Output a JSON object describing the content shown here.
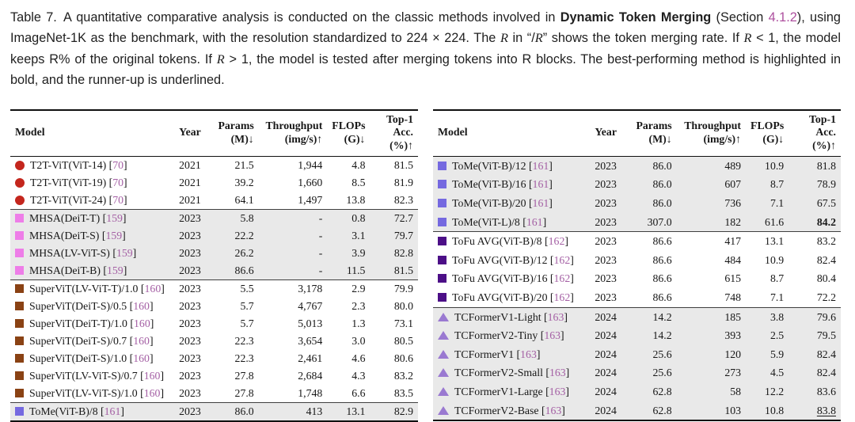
{
  "caption": {
    "segments": [
      {
        "type": "plain",
        "text": "Table 7. A quantitative comparative analysis is conducted on the classic methods involved in "
      },
      {
        "type": "bold",
        "text": "Dynamic Token Merging"
      },
      {
        "type": "plain",
        "text": " (Section "
      },
      {
        "type": "link",
        "text": "4.1.2"
      },
      {
        "type": "plain",
        "text": "), using ImageNet-1K as the benchmark, with the resolution standardized to 224 × 224. The "
      },
      {
        "type": "math",
        "text": "R"
      },
      {
        "type": "plain",
        "text": " in “/"
      },
      {
        "type": "math",
        "text": "R"
      },
      {
        "type": "plain",
        "text": "” shows the token merging rate. If "
      },
      {
        "type": "math",
        "text": "R"
      },
      {
        "type": "plain",
        "text": " < 1, the model keeps R% of the original tokens. If "
      },
      {
        "type": "math",
        "text": "R"
      },
      {
        "type": "plain",
        "text": " > 1, the model is tested after merging tokens into R blocks. The best-performing method is highlighted in bold, and the runner-up is underlined."
      }
    ]
  },
  "columns": [
    {
      "key": "model",
      "label1": "Model",
      "label2": "",
      "align": "left"
    },
    {
      "key": "year",
      "label1": "Year",
      "label2": "",
      "align": "center"
    },
    {
      "key": "params",
      "label1": "Params",
      "label2": "(M)↓",
      "align": "right"
    },
    {
      "key": "throughput",
      "label1": "Throughput",
      "label2": "(img/s)↑",
      "align": "right"
    },
    {
      "key": "flops",
      "label1": "FLOPs",
      "label2": "(G)↓",
      "align": "right"
    },
    {
      "key": "acc",
      "label1": "Top-1 Acc.",
      "label2": "(%)↑",
      "align": "right"
    }
  ],
  "colors": {
    "row_shade": "#e9e9e9",
    "citation_link": "#a45fa4",
    "section_link": "#ad4f9e",
    "rule_heavy": "#101010",
    "rule_group": "#3f3f3f"
  },
  "tables": [
    {
      "id": "left-table",
      "groups": [
        {
          "id": "t2t-vit",
          "shaded": false,
          "marker": {
            "shape": "circle",
            "color": "#c4261d"
          },
          "rows": [
            {
              "model": "T2T-ViT(ViT-14)",
              "cite": "70",
              "year": "2021",
              "params": "21.5",
              "throughput": "1,944",
              "flops": "4.8",
              "acc": "81.5"
            },
            {
              "model": "T2T-ViT(ViT-19)",
              "cite": "70",
              "year": "2021",
              "params": "39.2",
              "throughput": "1,660",
              "flops": "8.5",
              "acc": "81.9"
            },
            {
              "model": "T2T-ViT(ViT-24)",
              "cite": "70",
              "year": "2021",
              "params": "64.1",
              "throughput": "1,497",
              "flops": "13.8",
              "acc": "82.3"
            }
          ]
        },
        {
          "id": "mhsa",
          "shaded": true,
          "marker": {
            "shape": "square",
            "color": "#ee7de8"
          },
          "rows": [
            {
              "model": "MHSA(DeiT-T)",
              "cite": "159",
              "year": "2023",
              "params": "5.8",
              "throughput": "-",
              "flops": "0.8",
              "acc": "72.7"
            },
            {
              "model": "MHSA(DeiT-S)",
              "cite": "159",
              "year": "2023",
              "params": "22.2",
              "throughput": "-",
              "flops": "3.1",
              "acc": "79.7"
            },
            {
              "model": "MHSA(LV-ViT-S)",
              "cite": "159",
              "year": "2023",
              "params": "26.2",
              "throughput": "-",
              "flops": "3.9",
              "acc": "82.8"
            },
            {
              "model": "MHSA(DeiT-B)",
              "cite": "159",
              "year": "2023",
              "params": "86.6",
              "throughput": "-",
              "flops": "11.5",
              "acc": "81.5"
            }
          ]
        },
        {
          "id": "supervit",
          "shaded": false,
          "marker": {
            "shape": "square",
            "color": "#8a4214"
          },
          "rows": [
            {
              "model": "SuperViT(LV-ViT-T)/1.0",
              "cite": "160",
              "year": "2023",
              "params": "5.5",
              "throughput": "3,178",
              "flops": "2.9",
              "acc": "79.9"
            },
            {
              "model": "SuperViT(DeiT-S)/0.5",
              "cite": "160",
              "year": "2023",
              "params": "5.7",
              "throughput": "4,767",
              "flops": "2.3",
              "acc": "80.0"
            },
            {
              "model": "SuperViT(DeiT-T)/1.0",
              "cite": "160",
              "year": "2023",
              "params": "5.7",
              "throughput": "5,013",
              "flops": "1.3",
              "acc": "73.1"
            },
            {
              "model": "SuperViT(DeiT-S)/0.7",
              "cite": "160",
              "year": "2023",
              "params": "22.3",
              "throughput": "3,654",
              "flops": "3.0",
              "acc": "80.5"
            },
            {
              "model": "SuperViT(DeiT-S)/1.0",
              "cite": "160",
              "year": "2023",
              "params": "22.3",
              "throughput": "2,461",
              "flops": "4.6",
              "acc": "80.6"
            },
            {
              "model": "SuperViT(LV-ViT-S)/0.7",
              "cite": "160",
              "year": "2023",
              "params": "27.8",
              "throughput": "2,684",
              "flops": "4.3",
              "acc": "83.2"
            },
            {
              "model": "SuperViT(LV-ViT-S)/1.0",
              "cite": "160",
              "year": "2023",
              "params": "27.8",
              "throughput": "1,748",
              "flops": "6.6",
              "acc": "83.5"
            }
          ]
        },
        {
          "id": "tome",
          "shaded": true,
          "marker": {
            "shape": "square",
            "color": "#7569e0"
          },
          "rows": [
            {
              "model": "ToMe(ViT-B)/8",
              "cite": "161",
              "year": "2023",
              "params": "86.0",
              "throughput": "413",
              "flops": "13.1",
              "acc": "82.9"
            }
          ]
        }
      ]
    },
    {
      "id": "right-table",
      "groups": [
        {
          "id": "tome",
          "shaded": true,
          "marker": {
            "shape": "square",
            "color": "#7569e0"
          },
          "rows": [
            {
              "model": "ToMe(ViT-B)/12",
              "cite": "161",
              "year": "2023",
              "params": "86.0",
              "throughput": "489",
              "flops": "10.9",
              "acc": "81.8"
            },
            {
              "model": "ToMe(ViT-B)/16",
              "cite": "161",
              "year": "2023",
              "params": "86.0",
              "throughput": "607",
              "flops": "8.7",
              "acc": "78.9"
            },
            {
              "model": "ToMe(ViT-B)/20",
              "cite": "161",
              "year": "2023",
              "params": "86.0",
              "throughput": "736",
              "flops": "7.1",
              "acc": "67.5"
            },
            {
              "model": "ToMe(ViT-L)/8",
              "cite": "161",
              "year": "2023",
              "params": "307.0",
              "throughput": "182",
              "flops": "61.6",
              "acc": "84.2",
              "acc_bold": true
            }
          ]
        },
        {
          "id": "tofu",
          "shaded": false,
          "marker": {
            "shape": "square",
            "color": "#4c0f87"
          },
          "rows": [
            {
              "model": "ToFu AVG(ViT-B)/8",
              "cite": "162",
              "year": "2023",
              "params": "86.6",
              "throughput": "417",
              "flops": "13.1",
              "acc": "83.2"
            },
            {
              "model": "ToFu AVG(ViT-B)/12",
              "cite": "162",
              "year": "2023",
              "params": "86.6",
              "throughput": "484",
              "flops": "10.9",
              "acc": "82.4"
            },
            {
              "model": "ToFu AVG(ViT-B)/16",
              "cite": "162",
              "year": "2023",
              "params": "86.6",
              "throughput": "615",
              "flops": "8.7",
              "acc": "80.4"
            },
            {
              "model": "ToFu AVG(ViT-B)/20",
              "cite": "162",
              "year": "2023",
              "params": "86.6",
              "throughput": "748",
              "flops": "7.1",
              "acc": "72.2"
            }
          ]
        },
        {
          "id": "tcformer",
          "shaded": true,
          "marker": {
            "shape": "triangle",
            "color": "#9a79d1"
          },
          "rows": [
            {
              "model": "TCFormerV1-Light",
              "cite": "163",
              "year": "2024",
              "params": "14.2",
              "throughput": "185",
              "flops": "3.8",
              "acc": "79.6"
            },
            {
              "model": "TCFormerV2-Tiny",
              "cite": "163",
              "year": "2024",
              "params": "14.2",
              "throughput": "393",
              "flops": "2.5",
              "acc": "79.5"
            },
            {
              "model": "TCFormerV1",
              "cite": "163",
              "year": "2024",
              "params": "25.6",
              "throughput": "120",
              "flops": "5.9",
              "acc": "82.4"
            },
            {
              "model": "TCFormerV2-Small",
              "cite": "163",
              "year": "2024",
              "params": "25.6",
              "throughput": "273",
              "flops": "4.5",
              "acc": "82.4"
            },
            {
              "model": "TCFormerV1-Large",
              "cite": "163",
              "year": "2024",
              "params": "62.8",
              "throughput": "58",
              "flops": "12.2",
              "acc": "83.6"
            },
            {
              "model": "TCFormerV2-Base",
              "cite": "163",
              "year": "2024",
              "params": "62.8",
              "throughput": "103",
              "flops": "10.8",
              "acc": "83.8",
              "acc_underline": true
            }
          ]
        }
      ]
    }
  ]
}
